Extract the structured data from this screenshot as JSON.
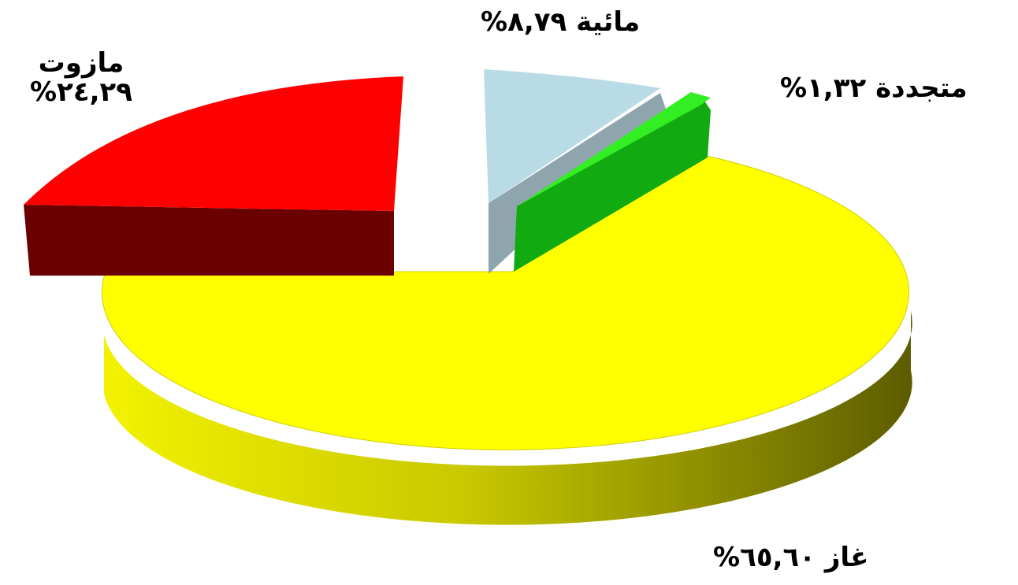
{
  "chart_data": {
    "type": "pie",
    "three_d": true,
    "exploded": true,
    "slices": [
      {
        "name": "غاز",
        "value": 65.6,
        "label_value": "٦٥,٦٠",
        "color": "#ffff00",
        "side_color": "#8a8a00"
      },
      {
        "name": "مازوت",
        "value": 24.29,
        "label_value": "٢٤,٢٩",
        "color": "#ff0000",
        "side_color": "#6b0000"
      },
      {
        "name": "مائية",
        "value": 8.79,
        "label_value": "٨,٧٩",
        "color": "#b9dbe6",
        "side_color": "#8fa5ad"
      },
      {
        "name": "متجددة",
        "value": 1.32,
        "label_value": "١,٣٢",
        "color": "#33ee22",
        "side_color": "#11aa11"
      }
    ],
    "percent_sign": "%"
  }
}
